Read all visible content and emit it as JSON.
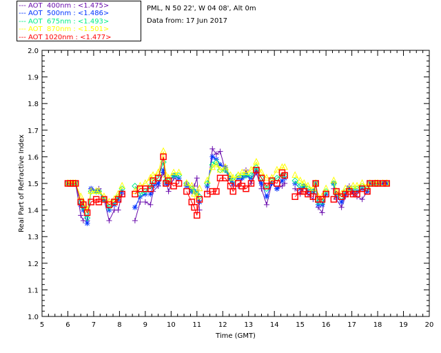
{
  "header": {
    "location": "PML, N 50 22', W 04 08', Alt 0m",
    "date_line": "Data from: 17 Jun 2017"
  },
  "chart_data": {
    "type": "line",
    "title": "",
    "xlabel": "Time (GMT)",
    "ylabel": "Real Part of Refractive Index",
    "xlim": [
      5,
      20
    ],
    "ylim": [
      1.0,
      2.0
    ],
    "xticks": [
      "5",
      "6",
      "7",
      "8",
      "9",
      "10",
      "11",
      "12",
      "13",
      "14",
      "15",
      "16",
      "17",
      "18",
      "19",
      "20"
    ],
    "yticks": [
      "1.0",
      "1.1",
      "1.2",
      "1.3",
      "1.4",
      "1.5",
      "1.6",
      "1.7",
      "1.8",
      "1.9",
      "2.0"
    ],
    "legend_placement": "top-left outside",
    "x": [
      6.0,
      6.1,
      6.2,
      6.3,
      6.5,
      6.6,
      6.75,
      6.9,
      7.1,
      7.2,
      7.4,
      7.6,
      7.8,
      7.95,
      8.1,
      8.6,
      8.8,
      9.0,
      9.2,
      9.3,
      9.5,
      9.7,
      9.8,
      9.9,
      10.1,
      10.3,
      10.6,
      10.8,
      10.9,
      11.0,
      11.1,
      11.4,
      11.6,
      11.75,
      11.9,
      12.1,
      12.3,
      12.4,
      12.6,
      12.75,
      12.9,
      13.1,
      13.3,
      13.5,
      13.7,
      13.9,
      14.1,
      14.3,
      14.4,
      14.8,
      15.0,
      15.15,
      15.3,
      15.5,
      15.6,
      15.7,
      15.85,
      16.0,
      16.3,
      16.4,
      16.6,
      16.75,
      16.9,
      17.05,
      17.2,
      17.4,
      17.6,
      17.7,
      17.9,
      18.0,
      18.2,
      18.35
    ],
    "series": [
      {
        "name": "AOT  400nm : <1.475>",
        "color": "#6a0dad",
        "marker": "plus",
        "values": [
          1.5,
          1.5,
          1.5,
          1.5,
          1.38,
          1.36,
          1.36,
          1.48,
          1.47,
          1.48,
          1.44,
          1.36,
          1.4,
          1.4,
          1.46,
          1.36,
          1.43,
          1.43,
          1.42,
          1.47,
          1.49,
          1.54,
          1.51,
          1.47,
          1.52,
          1.51,
          1.5,
          1.47,
          1.49,
          1.52,
          1.4,
          1.47,
          1.63,
          1.61,
          1.62,
          1.55,
          1.51,
          1.49,
          1.49,
          1.52,
          1.55,
          1.5,
          1.54,
          1.48,
          1.42,
          1.5,
          1.48,
          1.49,
          1.5,
          1.48,
          1.46,
          1.49,
          1.46,
          1.44,
          1.5,
          1.41,
          1.39,
          1.46,
          1.48,
          1.44,
          1.41,
          1.45,
          1.49,
          1.46,
          1.45,
          1.44,
          1.47,
          1.5,
          1.5,
          1.5,
          1.5,
          1.5
        ]
      },
      {
        "name": "AOT  500nm : <1.486>",
        "color": "#0033ff",
        "marker": "star",
        "values": [
          1.5,
          1.5,
          1.5,
          1.5,
          1.42,
          1.4,
          1.35,
          1.48,
          1.47,
          1.47,
          1.44,
          1.4,
          1.42,
          1.44,
          1.47,
          1.41,
          1.45,
          1.46,
          1.46,
          1.49,
          1.5,
          1.55,
          1.5,
          1.5,
          1.53,
          1.52,
          1.49,
          1.47,
          1.47,
          1.46,
          1.43,
          1.49,
          1.6,
          1.59,
          1.57,
          1.56,
          1.52,
          1.5,
          1.52,
          1.52,
          1.53,
          1.52,
          1.55,
          1.5,
          1.45,
          1.5,
          1.48,
          1.51,
          1.52,
          1.5,
          1.48,
          1.49,
          1.47,
          1.47,
          1.5,
          1.42,
          1.42,
          1.46,
          1.5,
          1.45,
          1.43,
          1.46,
          1.48,
          1.47,
          1.47,
          1.48,
          1.47,
          1.5,
          1.5,
          1.5,
          1.5,
          1.5
        ]
      },
      {
        "name": "AOT  675nm : <1.493>",
        "color": "#00ee88",
        "marker": "diamond",
        "values": [
          1.5,
          1.5,
          1.5,
          1.5,
          1.43,
          1.41,
          1.37,
          1.47,
          1.47,
          1.47,
          1.44,
          1.41,
          1.43,
          1.45,
          1.48,
          1.49,
          1.46,
          1.47,
          1.49,
          1.51,
          1.52,
          1.58,
          1.51,
          1.51,
          1.53,
          1.53,
          1.5,
          1.48,
          1.47,
          1.46,
          1.45,
          1.5,
          1.57,
          1.58,
          1.55,
          1.55,
          1.52,
          1.51,
          1.53,
          1.53,
          1.53,
          1.53,
          1.56,
          1.52,
          1.48,
          1.51,
          1.52,
          1.53,
          1.53,
          1.51,
          1.49,
          1.49,
          1.48,
          1.47,
          1.5,
          1.43,
          1.43,
          1.47,
          1.5,
          1.46,
          1.45,
          1.47,
          1.48,
          1.48,
          1.48,
          1.49,
          1.48,
          1.5,
          1.5,
          1.5,
          1.5,
          1.5
        ]
      },
      {
        "name": "AOT  870nm : <1.501>",
        "color": "#ffff00",
        "marker": "triangle",
        "values": [
          1.5,
          1.5,
          1.5,
          1.5,
          1.45,
          1.43,
          1.4,
          1.47,
          1.47,
          1.47,
          1.45,
          1.43,
          1.44,
          1.46,
          1.49,
          1.47,
          1.49,
          1.5,
          1.52,
          1.53,
          1.54,
          1.62,
          1.53,
          1.52,
          1.54,
          1.54,
          1.5,
          1.49,
          1.46,
          1.45,
          1.48,
          1.51,
          1.56,
          1.57,
          1.55,
          1.56,
          1.53,
          1.52,
          1.53,
          1.54,
          1.54,
          1.55,
          1.58,
          1.54,
          1.52,
          1.52,
          1.55,
          1.56,
          1.56,
          1.53,
          1.51,
          1.5,
          1.49,
          1.48,
          1.5,
          1.45,
          1.45,
          1.48,
          1.51,
          1.47,
          1.46,
          1.48,
          1.48,
          1.49,
          1.49,
          1.5,
          1.49,
          1.5,
          1.5,
          1.5,
          1.5,
          1.5
        ]
      },
      {
        "name": "AOT 1020nm : <1.477>",
        "color": "#ff0000",
        "marker": "square",
        "values": [
          1.5,
          1.5,
          1.5,
          1.5,
          1.43,
          1.42,
          1.39,
          1.43,
          1.44,
          1.43,
          1.44,
          1.42,
          1.43,
          1.44,
          1.46,
          1.46,
          1.48,
          1.48,
          1.48,
          1.51,
          1.52,
          1.6,
          1.5,
          1.51,
          1.49,
          1.5,
          1.47,
          1.43,
          1.41,
          1.38,
          1.44,
          1.46,
          1.47,
          1.47,
          1.52,
          1.52,
          1.49,
          1.47,
          1.5,
          1.49,
          1.48,
          1.5,
          1.55,
          1.52,
          1.49,
          1.51,
          1.5,
          1.54,
          1.53,
          1.45,
          1.47,
          1.47,
          1.46,
          1.45,
          1.5,
          1.44,
          1.44,
          1.46,
          1.44,
          1.47,
          1.45,
          1.46,
          1.47,
          1.46,
          1.46,
          1.48,
          1.47,
          1.5,
          1.5,
          1.5,
          1.5,
          1.5
        ]
      }
    ]
  }
}
